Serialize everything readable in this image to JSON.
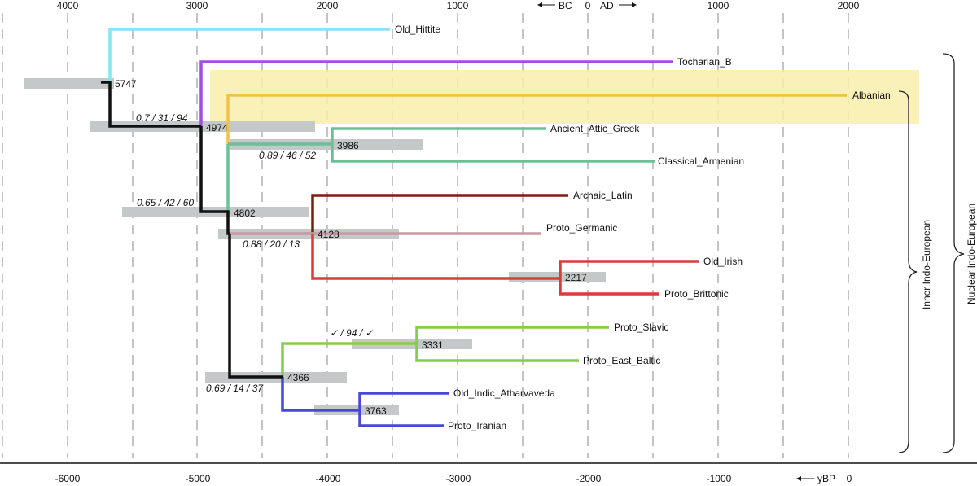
{
  "top_axis": {
    "ticks": [
      "4000",
      "3000",
      "2000",
      "1000",
      "1000",
      "2000"
    ],
    "era": {
      "bc": "BC",
      "zero": "0",
      "ad": "AD"
    }
  },
  "bottom_axis": {
    "ticks": [
      "-6000",
      "-5000",
      "-4000",
      "-3000",
      "-2000",
      "-1000"
    ],
    "unit": "yBP",
    "zero": "0"
  },
  "tree": {
    "leaves": [
      {
        "name": "Old_Hittite",
        "color": "#88e4f0"
      },
      {
        "name": "Tocharian_B",
        "color": "#a24ee0"
      },
      {
        "name": "Albanian",
        "color": "#f0c24c",
        "highlighted": true,
        "highlight_color": "#f8eeaa"
      },
      {
        "name": "Ancient_Attic_Greek",
        "color": "#6cc096"
      },
      {
        "name": "Classical_Armenian",
        "color": "#6cc096"
      },
      {
        "name": "Archaic_Latin",
        "color": "#7a1e12"
      },
      {
        "name": "Proto_Germanic",
        "color": "#c898a4"
      },
      {
        "name": "Old_Irish",
        "color": "#d83c3c"
      },
      {
        "name": "Proto_Brittonic",
        "color": "#d83c3c"
      },
      {
        "name": "Proto_Slavic",
        "color": "#88cc4c"
      },
      {
        "name": "Proto_East_Baltic",
        "color": "#88cc4c"
      },
      {
        "name": "Old_Indic_Atharvaveda",
        "color": "#4848d8"
      },
      {
        "name": "Proto_Iranian",
        "color": "#4848d8"
      }
    ],
    "nodes": [
      {
        "age": "5747",
        "support": ""
      },
      {
        "age": "4974",
        "support": "0.7 / 31 / 94"
      },
      {
        "age": "4802",
        "support": "0.65 / 42 / 60"
      },
      {
        "age": "3986",
        "support": "0.89 / 46 / 52"
      },
      {
        "age": "4128",
        "support": "0.88 / 20 / 13"
      },
      {
        "age": "2217",
        "support": ""
      },
      {
        "age": "4366",
        "support": "0.69 / 14 / 37"
      },
      {
        "age": "3331",
        "support": "✓ / 94 / ✓"
      },
      {
        "age": "3763",
        "support": ""
      }
    ],
    "clades": [
      "Inner Indo-European",
      "Nuclear Indo-European"
    ],
    "backbone_color": "#111111",
    "interval_color": "#c4c8c8"
  }
}
